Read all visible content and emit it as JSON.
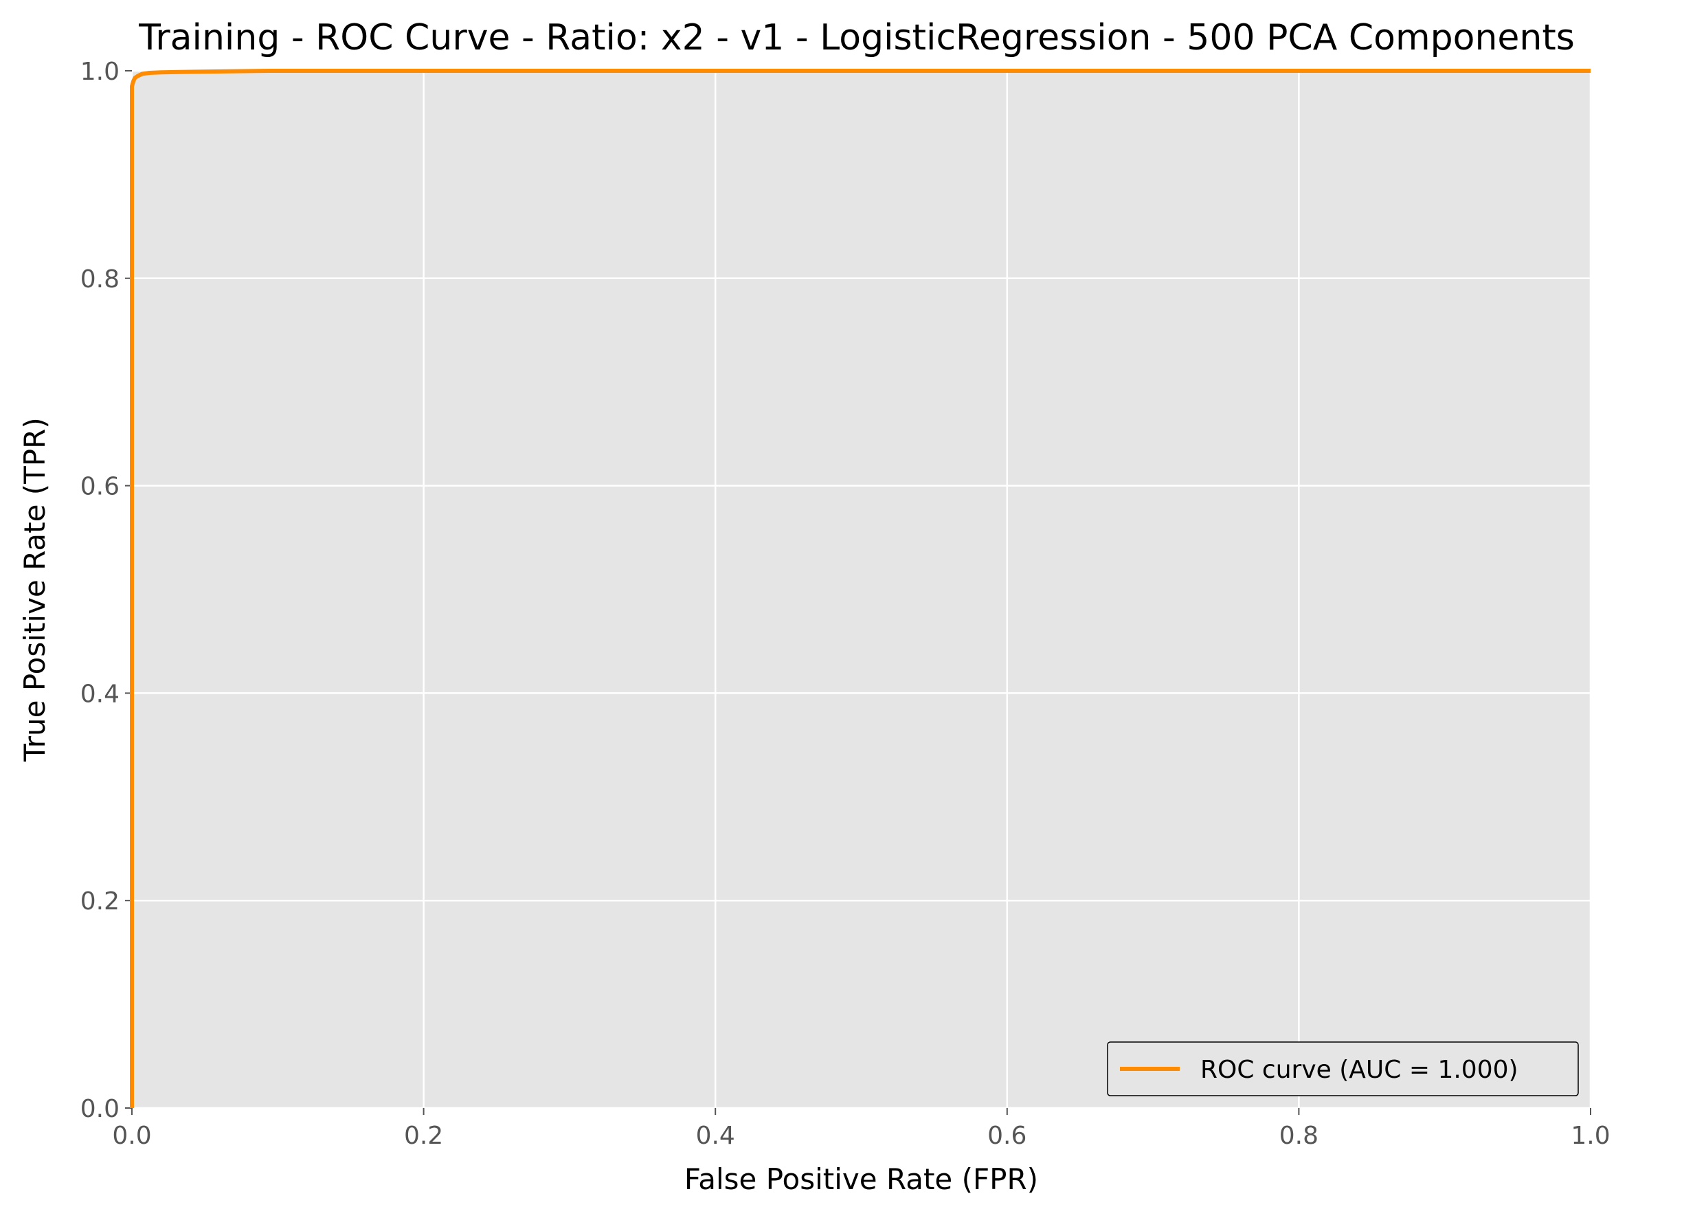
{
  "chart_data": {
    "type": "line",
    "title": "Training - ROC Curve - Ratio: x2 - v1 - LogisticRegression - 500 PCA Components",
    "xlabel": "False Positive Rate (FPR)",
    "ylabel": "True Positive Rate (TPR)",
    "xlim": [
      0.0,
      1.0
    ],
    "ylim": [
      0.0,
      1.0
    ],
    "xticks": [
      "0.0",
      "0.2",
      "0.4",
      "0.6",
      "0.8",
      "1.0"
    ],
    "yticks": [
      "0.0",
      "0.2",
      "0.4",
      "0.6",
      "0.8",
      "1.0"
    ],
    "grid": true,
    "legend_position": "lower-right",
    "series": [
      {
        "name": "ROC curve (AUC = 1.000)",
        "color": "#ff8c00",
        "x": [
          0.0,
          0.0,
          0.0,
          0.001,
          0.002,
          0.004,
          0.007,
          0.012,
          0.02,
          0.04,
          0.095,
          1.0
        ],
        "y": [
          0.0,
          0.95,
          0.985,
          0.99,
          0.993,
          0.995,
          0.997,
          0.998,
          0.9985,
          0.999,
          1.0,
          1.0
        ]
      }
    ]
  }
}
